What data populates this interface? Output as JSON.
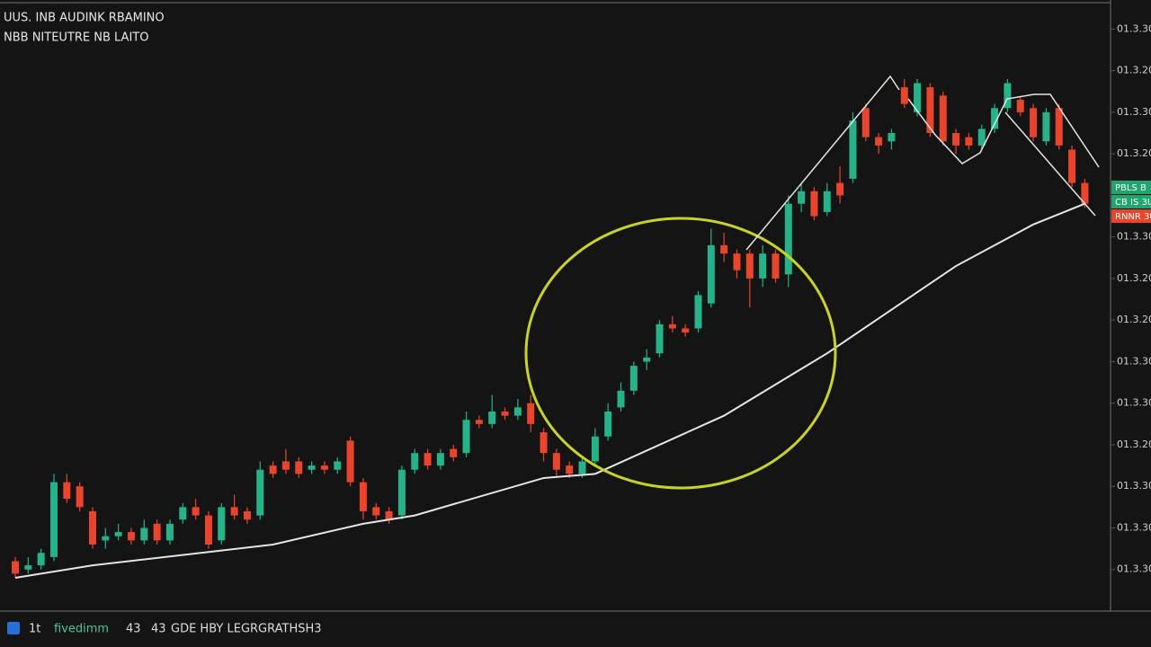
{
  "header": {
    "line1": "UUS. INB AUDINK RBAMINO",
    "line2": "NBB NITEUTRE NB LAITO"
  },
  "footer": {
    "items": [
      "1t",
      "fivedimm",
      "43",
      "43",
      "GDE HBY LEGRGRATHSH3"
    ]
  },
  "chart_data": {
    "type": "candlestick",
    "up_color": "#26b38a",
    "down_color": "#e8452c",
    "ylim": [
      0,
      14.7
    ],
    "yticks": [
      {
        "value": 14,
        "label": "01.3.30"
      },
      {
        "value": 13,
        "label": "01.3.20"
      },
      {
        "value": 12,
        "label": "01.3.30"
      },
      {
        "value": 11,
        "label": "01.3.20"
      },
      {
        "value": 9,
        "label": "01.3.30"
      },
      {
        "value": 8,
        "label": "01.3.20"
      },
      {
        "value": 7,
        "label": "01.3.20"
      },
      {
        "value": 6,
        "label": "01.3.30"
      },
      {
        "value": 5,
        "label": "01.3.30"
      },
      {
        "value": 4,
        "label": "01.3.20"
      },
      {
        "value": 3,
        "label": "01.3.30"
      },
      {
        "value": 2,
        "label": "01.3.30"
      },
      {
        "value": 1,
        "label": "01.3.30"
      }
    ],
    "price_labels": [
      {
        "label": "PBLS B",
        "color": "#1fa56f"
      },
      {
        "label": "CB IS 3U",
        "color": "#1fa56f"
      },
      {
        "label": "RNNR 3U",
        "color": "#e8452c"
      }
    ],
    "open": [
      1.2,
      1.0,
      1.1,
      1.3,
      3.1,
      3.0,
      2.4,
      1.7,
      1.8,
      1.9,
      1.7,
      2.1,
      1.7,
      2.2,
      2.5,
      2.3,
      1.7,
      2.5,
      2.4,
      2.3,
      3.5,
      3.6,
      3.6,
      3.4,
      3.5,
      3.4,
      4.1,
      3.1,
      2.5,
      2.4,
      2.3,
      3.4,
      3.8,
      3.5,
      3.9,
      3.8,
      4.6,
      4.5,
      4.8,
      4.7,
      5.0,
      4.3,
      3.8,
      3.5,
      3.3,
      3.6,
      4.2,
      4.9,
      5.3,
      6.0,
      6.2,
      6.9,
      6.8,
      6.8,
      7.4,
      8.8,
      8.6,
      8.6,
      8.0,
      8.6,
      8.1,
      9.8,
      10.1,
      9.6,
      10.3,
      10.4,
      12.1,
      11.4,
      11.3,
      12.6,
      12.0,
      12.6,
      12.4,
      11.5,
      11.4,
      11.2,
      11.6,
      12.1,
      12.3,
      12.1,
      11.3,
      12.1,
      11.1,
      10.3
    ],
    "high": [
      1.3,
      1.3,
      1.5,
      3.3,
      3.3,
      3.1,
      2.5,
      2.0,
      2.1,
      2.0,
      2.2,
      2.2,
      2.2,
      2.6,
      2.7,
      2.4,
      2.6,
      2.8,
      2.5,
      3.6,
      3.6,
      3.9,
      3.7,
      3.6,
      3.6,
      3.7,
      4.2,
      3.2,
      2.6,
      2.5,
      3.5,
      3.9,
      3.9,
      3.9,
      4.0,
      4.8,
      4.7,
      5.2,
      4.9,
      5.1,
      5.2,
      4.4,
      3.9,
      3.6,
      3.7,
      4.4,
      5.0,
      5.5,
      6.0,
      6.3,
      7.0,
      7.1,
      6.9,
      7.7,
      9.2,
      9.1,
      8.7,
      8.7,
      8.8,
      8.7,
      10.0,
      10.3,
      10.2,
      10.3,
      10.7,
      12.0,
      12.2,
      11.5,
      11.6,
      12.8,
      12.8,
      12.7,
      12.5,
      11.6,
      11.5,
      11.7,
      12.2,
      12.8,
      12.4,
      12.2,
      12.1,
      12.2,
      11.2,
      10.4
    ],
    "low": [
      0.8,
      0.9,
      1.0,
      1.2,
      2.6,
      2.4,
      1.5,
      1.5,
      1.7,
      1.6,
      1.6,
      1.6,
      1.6,
      2.1,
      2.2,
      1.5,
      1.6,
      2.2,
      2.1,
      2.2,
      3.2,
      3.3,
      3.2,
      3.3,
      3.3,
      3.3,
      3.0,
      2.2,
      2.2,
      2.1,
      2.2,
      3.3,
      3.4,
      3.4,
      3.6,
      3.7,
      4.4,
      4.4,
      4.6,
      4.6,
      4.3,
      3.6,
      3.2,
      3.2,
      3.2,
      3.5,
      4.1,
      4.8,
      5.2,
      5.8,
      6.1,
      6.7,
      6.6,
      6.7,
      7.3,
      8.4,
      8.0,
      7.3,
      7.8,
      7.9,
      7.8,
      9.6,
      9.4,
      9.5,
      9.8,
      10.3,
      11.3,
      11.0,
      11.1,
      12.1,
      11.9,
      11.4,
      11.2,
      11.0,
      11.1,
      11.1,
      11.5,
      12.0,
      11.9,
      11.3,
      11.2,
      11.1,
      10.2,
      9.7
    ],
    "close": [
      0.9,
      1.1,
      1.4,
      3.1,
      2.7,
      2.5,
      1.6,
      1.8,
      1.9,
      1.7,
      2.0,
      1.7,
      2.1,
      2.5,
      2.3,
      1.6,
      2.5,
      2.3,
      2.2,
      3.4,
      3.3,
      3.4,
      3.3,
      3.5,
      3.4,
      3.6,
      3.1,
      2.4,
      2.3,
      2.2,
      3.4,
      3.8,
      3.5,
      3.8,
      3.7,
      4.6,
      4.5,
      4.8,
      4.7,
      4.9,
      4.5,
      3.8,
      3.4,
      3.3,
      3.6,
      4.2,
      4.8,
      5.3,
      5.9,
      6.1,
      6.9,
      6.8,
      6.7,
      7.6,
      8.8,
      8.6,
      8.2,
      8.0,
      8.6,
      8.0,
      9.8,
      10.1,
      9.5,
      10.1,
      10.0,
      11.8,
      11.4,
      11.2,
      11.5,
      12.2,
      12.7,
      11.5,
      11.3,
      11.2,
      11.2,
      11.6,
      12.1,
      12.7,
      12.0,
      11.4,
      12.0,
      11.2,
      10.3,
      9.8
    ],
    "moving_average": {
      "color": "#e6e6e6",
      "x": [
        0,
        6,
        20,
        27,
        31,
        41,
        45,
        55,
        63,
        73,
        79,
        83
      ],
      "values": [
        0.8,
        1.1,
        1.6,
        2.1,
        2.3,
        3.2,
        3.3,
        4.7,
        6.2,
        8.3,
        9.3,
        9.8
      ]
    }
  }
}
